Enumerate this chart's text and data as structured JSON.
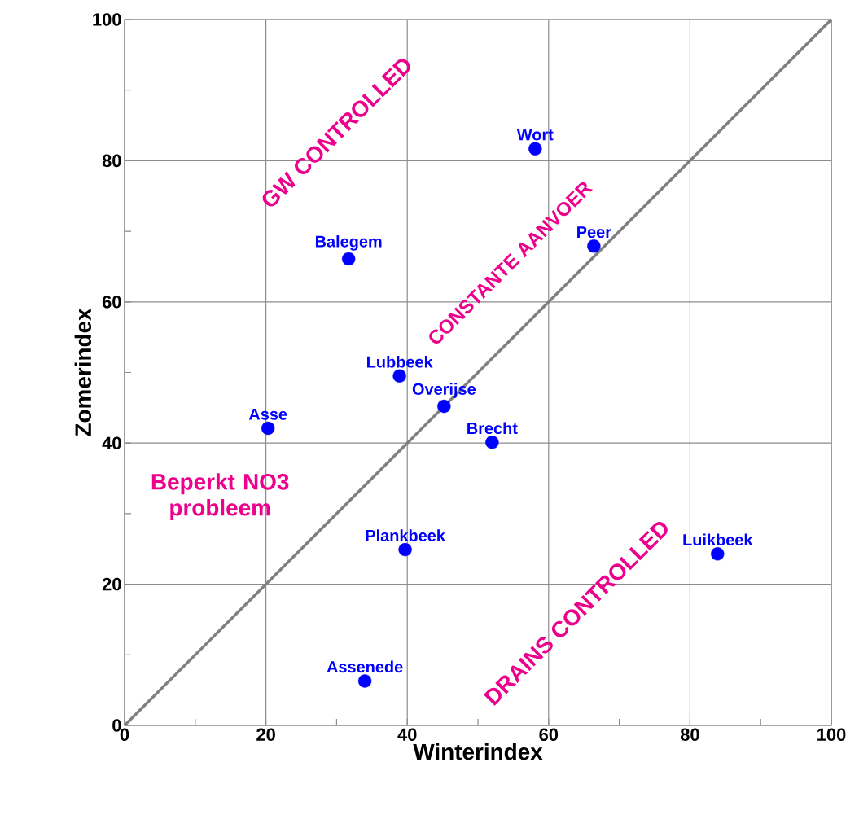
{
  "chart_data": {
    "type": "scatter",
    "xlabel": "Winterindex",
    "ylabel": "Zomerindex",
    "series": [
      {
        "type": "line",
        "color": "#808080",
        "x": [
          0,
          100
        ],
        "values": [
          0,
          100
        ],
        "marker": "none"
      },
      {
        "color": "#0000ff",
        "marker": "circle",
        "x": [
          58.1,
          66.4,
          31.7,
          38.9,
          45.2,
          52.0,
          20.3,
          39.7,
          83.9,
          34.0
        ],
        "values": [
          81.7,
          67.9,
          66.1,
          49.5,
          45.2,
          40.1,
          42.1,
          24.9,
          24.3,
          6.3
        ]
      }
    ],
    "xlim": [
      0,
      100
    ],
    "ylim": [
      0,
      100
    ],
    "xticks": [
      0,
      {
        "value": 10,
        "label": null
      },
      20,
      {
        "value": 30,
        "label": null
      },
      40,
      {
        "value": 50,
        "label": null
      },
      60,
      {
        "value": 70,
        "label": null
      },
      80,
      {
        "value": 90,
        "label": null
      },
      100
    ],
    "yticks": [
      0,
      {
        "value": 10,
        "label": null
      },
      20,
      {
        "value": 30,
        "label": null
      },
      40,
      {
        "value": 50,
        "label": null
      },
      60,
      {
        "value": 70,
        "label": null
      },
      80,
      {
        "value": 90,
        "label": null
      },
      100
    ],
    "grid": true,
    "annotations": [
      {
        "text": "Wort",
        "x": 58.1,
        "y": 81.7
      },
      {
        "text": "Peer",
        "x": 66.4,
        "y": 67.9
      },
      {
        "text": "Balegem",
        "x": 31.7,
        "y": 66.1
      },
      {
        "text": "Lubbeek",
        "x": 38.9,
        "y": 49.5
      },
      {
        "text": "Overijse",
        "x": 45.2,
        "y": 45.2
      },
      {
        "text": "Brecht",
        "x": 52.0,
        "y": 40.1
      },
      {
        "text": "Asse",
        "x": 20.3,
        "y": 42.1
      },
      {
        "text": "Plankbeek",
        "x": 39.7,
        "y": 24.9
      },
      {
        "text": "Luikbeek",
        "x": 83.9,
        "y": 24.3
      },
      {
        "text": "Assenede",
        "x": 34.0,
        "y": 6.3
      },
      "GW CONTROLLED",
      "CONSTANTE AANVOER",
      "DRAINS CONTROLLED",
      "Beperkt NO3 probleem"
    ]
  }
}
